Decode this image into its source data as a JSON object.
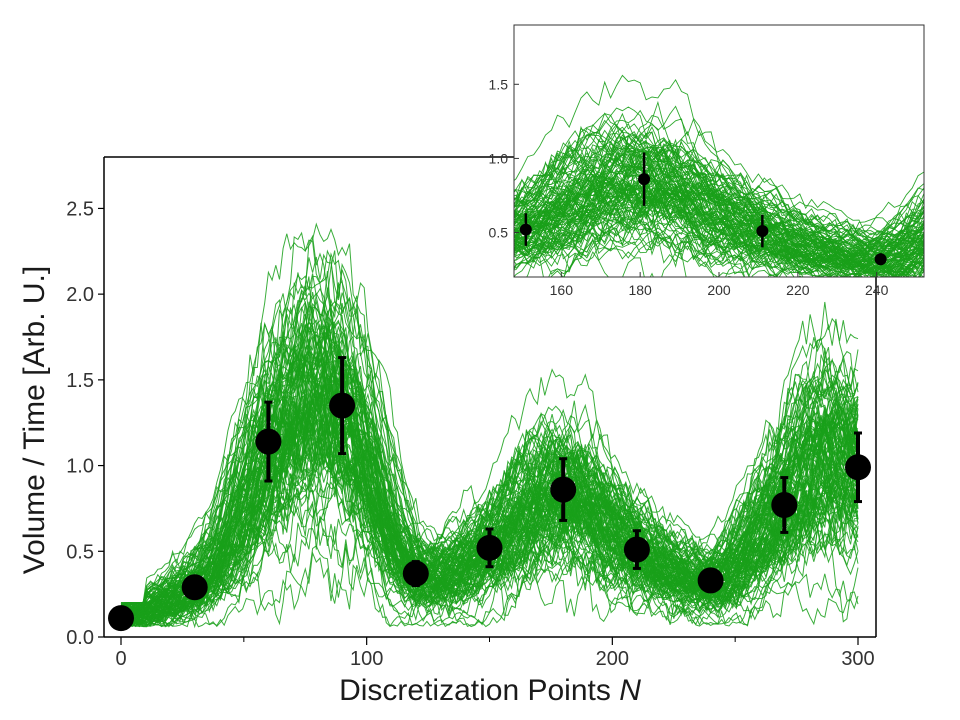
{
  "chart_data": [
    {
      "type": "line",
      "xlabel": "Discretization Points",
      "xlabel_var": "N",
      "ylabel": "Volume / Time [Arb. U.]",
      "xlim": [
        -5,
        305
      ],
      "ylim": [
        0,
        2.8
      ],
      "xticks": [
        0,
        100,
        200,
        300
      ],
      "yticks": [
        0.0,
        0.5,
        1.0,
        1.5,
        2.0,
        2.5
      ],
      "ytick_labels": [
        "0.0",
        "0.5",
        "1.0",
        "1.5",
        "2.0",
        "2.5"
      ],
      "trace_color": "#19a01a",
      "trace_count": 120,
      "mean_curve": {
        "x": [
          0,
          10,
          20,
          30,
          40,
          50,
          60,
          70,
          80,
          90,
          100,
          110,
          120,
          130,
          140,
          150,
          160,
          170,
          180,
          190,
          200,
          210,
          220,
          230,
          240,
          250,
          260,
          270,
          280,
          290,
          300
        ],
        "y": [
          0.12,
          0.16,
          0.22,
          0.3,
          0.45,
          0.75,
          1.1,
          1.3,
          1.45,
          1.35,
          1.05,
          0.6,
          0.35,
          0.35,
          0.42,
          0.52,
          0.65,
          0.8,
          0.86,
          0.8,
          0.62,
          0.52,
          0.42,
          0.35,
          0.3,
          0.4,
          0.6,
          0.8,
          1.05,
          1.1,
          0.99
        ]
      },
      "points": [
        {
          "x": 0,
          "y": 0.11,
          "err": 0.02
        },
        {
          "x": 30,
          "y": 0.29,
          "err": 0.02
        },
        {
          "x": 60,
          "y": 1.14,
          "err": 0.23
        },
        {
          "x": 90,
          "y": 1.35,
          "err": 0.28
        },
        {
          "x": 120,
          "y": 0.37,
          "err": 0.07
        },
        {
          "x": 150,
          "y": 0.52,
          "err": 0.11
        },
        {
          "x": 180,
          "y": 0.86,
          "err": 0.18
        },
        {
          "x": 210,
          "y": 0.51,
          "err": 0.11
        },
        {
          "x": 240,
          "y": 0.33,
          "err": 0.04
        },
        {
          "x": 270,
          "y": 0.77,
          "err": 0.16
        },
        {
          "x": 300,
          "y": 0.99,
          "err": 0.2
        }
      ]
    },
    {
      "type": "line",
      "role": "inset",
      "xlim": [
        148,
        252
      ],
      "ylim": [
        0.2,
        1.9
      ],
      "xticks": [
        160,
        180,
        200,
        220,
        240
      ],
      "yticks": [
        0.5,
        1.0,
        1.5
      ],
      "ytick_labels": [
        "0.5",
        "1.0",
        "1.5"
      ],
      "trace_color": "#19a01a",
      "trace_count": 120,
      "points": [
        {
          "x": 151,
          "y": 0.52,
          "err": 0.11
        },
        {
          "x": 181,
          "y": 0.86,
          "err": 0.18
        },
        {
          "x": 211,
          "y": 0.51,
          "err": 0.11
        },
        {
          "x": 241,
          "y": 0.32,
          "err": 0.04
        }
      ]
    }
  ]
}
